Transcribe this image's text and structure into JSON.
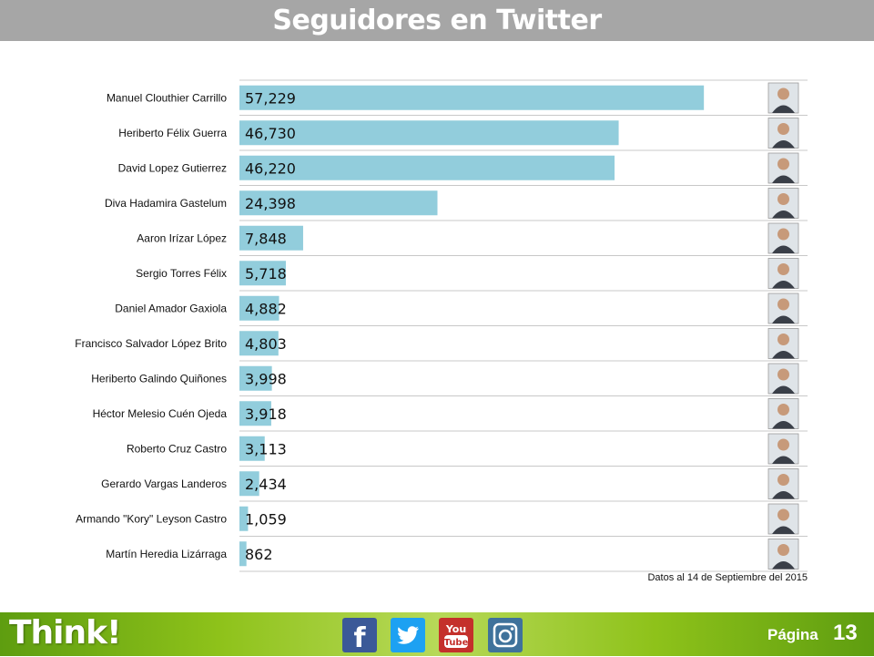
{
  "header": {
    "title": "Seguidores en Twitter"
  },
  "chart_data": {
    "type": "bar",
    "orientation": "horizontal",
    "categories": [
      "Manuel Clouthier Carrillo",
      "Heriberto Félix Guerra",
      "David Lopez Gutierrez",
      "Diva Hadamira Gastelum",
      "Aaron Irízar López",
      "Sergio Torres Félix",
      "Daniel Amador Gaxiola",
      "Francisco Salvador López Brito",
      "Heriberto Galindo Quiñones",
      "Héctor Melesio Cuén Ojeda",
      "Roberto Cruz Castro",
      "Gerardo Vargas Landeros",
      "Armando \"Kory\" Leyson Castro",
      "Martín Heredia Lizárraga"
    ],
    "values": [
      57229,
      46730,
      46220,
      24398,
      7848,
      5718,
      4882,
      4803,
      3998,
      3918,
      3113,
      2434,
      1059,
      862
    ],
    "value_labels": [
      "57,229",
      "46,730",
      "46,220",
      "24,398",
      "7,848",
      "5,718",
      "4,882",
      "4,803",
      "3,998",
      "3,918",
      "3,113",
      "2,434",
      "1,059",
      "862"
    ],
    "xlim": [
      0,
      70000
    ],
    "bar_color": "#92cddc",
    "grid": "horizontal separators",
    "legend": "none",
    "row_thumbnail": "candidate-photo"
  },
  "footnote": "Datos al 14  de Septiembre del 2015",
  "footer": {
    "brand": "Think!",
    "social": [
      {
        "icon": "facebook-icon",
        "text": "f",
        "color": "#3b5998"
      },
      {
        "icon": "twitter-icon",
        "text": "",
        "color": "#1da1f2"
      },
      {
        "icon": "youtube-icon",
        "text": "You",
        "text2": "Tube",
        "color": "#c4302b"
      },
      {
        "icon": "instagram-icon",
        "text": "",
        "color": "#3f729b"
      }
    ],
    "page_label": "Página",
    "page_number": "13"
  }
}
